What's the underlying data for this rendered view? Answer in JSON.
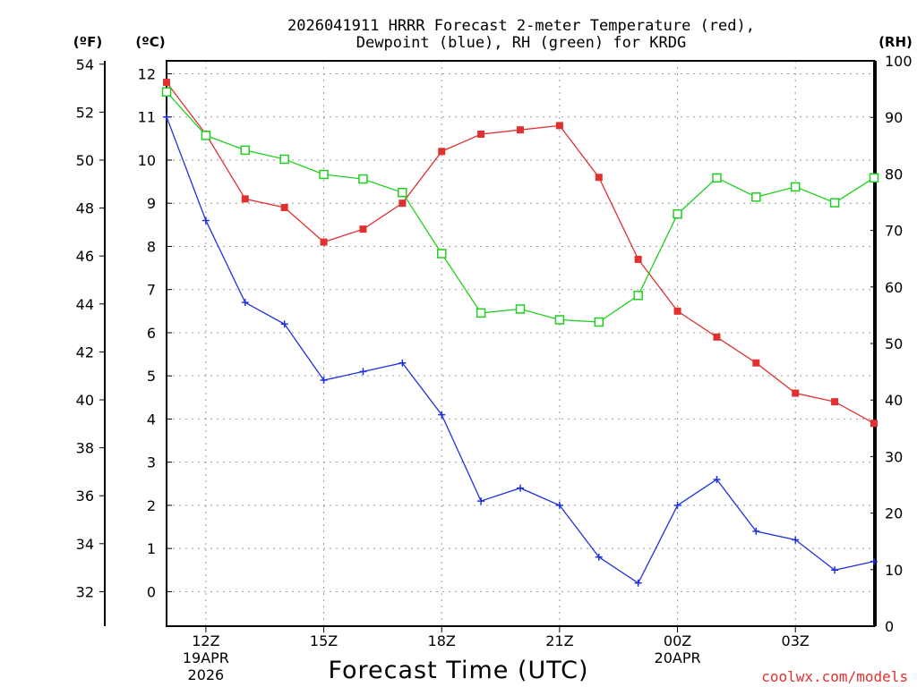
{
  "chart_data": {
    "type": "line",
    "title": [
      "2026041911 HRRR Forecast 2-meter Temperature (red),",
      "Dewpoint (blue), RH (green) for KRDG"
    ],
    "xlabel": "Forecast Time (UTC)",
    "unit_f": "(ºF)",
    "unit_c": "(ºC)",
    "unit_rh": "(RH)",
    "x": [
      "11Z",
      "12Z",
      "13Z",
      "14Z",
      "15Z",
      "16Z",
      "17Z",
      "18Z",
      "19Z",
      "20Z",
      "21Z",
      "22Z",
      "23Z",
      "00Z",
      "01Z",
      "02Z",
      "03Z",
      "04Z",
      "05Z"
    ],
    "x_tick_labels": [
      {
        "index": 1,
        "lines": [
          "12Z",
          "19APR",
          "2026"
        ]
      },
      {
        "index": 4,
        "lines": [
          "15Z"
        ]
      },
      {
        "index": 7,
        "lines": [
          "18Z"
        ]
      },
      {
        "index": 10,
        "lines": [
          "21Z"
        ]
      },
      {
        "index": 13,
        "lines": [
          "00Z",
          "20APR"
        ]
      },
      {
        "index": 16,
        "lines": [
          "03Z"
        ]
      }
    ],
    "y_celsius": {
      "range": [
        -0.8,
        12.3
      ],
      "ticks": [
        0,
        1,
        2,
        3,
        4,
        5,
        6,
        7,
        8,
        9,
        10,
        11,
        12
      ]
    },
    "y_fahrenheit": {
      "ticks": [
        32,
        34,
        36,
        38,
        40,
        42,
        44,
        46,
        48,
        50,
        52,
        54
      ]
    },
    "y_rh": {
      "range": [
        0,
        100
      ],
      "ticks": [
        0,
        10,
        20,
        30,
        40,
        50,
        60,
        70,
        80,
        90,
        100
      ]
    },
    "grid": true,
    "series": [
      {
        "name": "Temperature",
        "axis": "celsius",
        "color": "#e03030",
        "marker": "filled-square",
        "values": [
          11.8,
          10.6,
          9.1,
          8.9,
          8.1,
          8.4,
          9.0,
          10.2,
          10.6,
          10.7,
          10.8,
          9.6,
          7.7,
          6.5,
          5.9,
          5.3,
          4.6,
          4.4,
          3.9
        ]
      },
      {
        "name": "Dewpoint",
        "axis": "celsius",
        "color": "#2030e0",
        "marker": "plus",
        "values": [
          11.0,
          8.6,
          6.7,
          6.2,
          4.9,
          5.1,
          5.3,
          4.1,
          2.1,
          2.4,
          2.0,
          0.8,
          0.2,
          2.0,
          2.6,
          1.4,
          1.2,
          0.5,
          0.7
        ]
      },
      {
        "name": "RH",
        "axis": "rh",
        "color": "#20d020",
        "marker": "open-square",
        "values": [
          94.5,
          86.8,
          84.2,
          82.6,
          79.9,
          79.1,
          76.7,
          65.9,
          55.4,
          56.1,
          54.2,
          53.8,
          58.5,
          72.9,
          79.3,
          75.9,
          77.7,
          74.9,
          79.3
        ]
      }
    ]
  },
  "watermark": "coolwx.com/models"
}
